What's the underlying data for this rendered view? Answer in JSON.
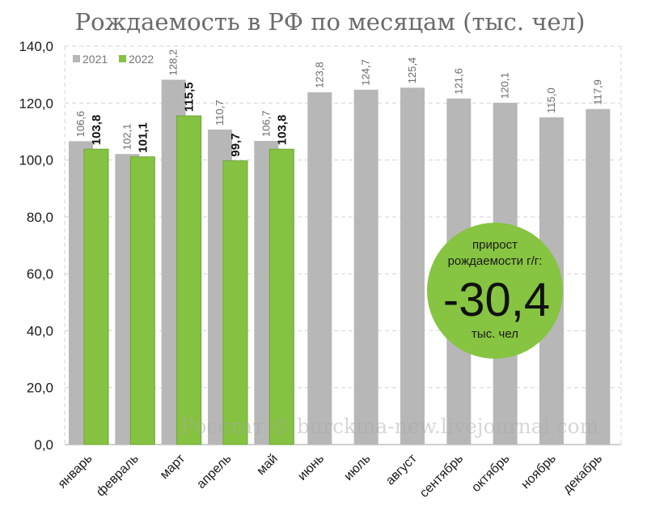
{
  "chart_data": {
    "type": "bar",
    "title": "Рождаемость в РФ по месяцам (тыс. чел)",
    "xlabel": "",
    "ylabel": "",
    "ylim": [
      0,
      140
    ],
    "yticks": [
      "0,0",
      "20,0",
      "40,0",
      "60,0",
      "80,0",
      "100,0",
      "120,0",
      "140,0"
    ],
    "grid": true,
    "legend_position": "top-left",
    "categories": [
      "январь",
      "февраль",
      "март",
      "апрель",
      "май",
      "июнь",
      "июль",
      "август",
      "сентябрь",
      "октябрь",
      "ноябрь",
      "декабрь"
    ],
    "series": [
      {
        "name": "2021",
        "color": "#b7b7b7",
        "values": [
          106.6,
          102.1,
          128.2,
          110.7,
          106.7,
          123.8,
          124.7,
          125.4,
          121.6,
          120.1,
          115.0,
          117.9
        ],
        "labels": [
          "106,6",
          "102,1",
          "128,2",
          "110,7",
          "106,7",
          "123,8",
          "124,7",
          "125,4",
          "121,6",
          "120,1",
          "115,0",
          "117,9"
        ]
      },
      {
        "name": "2022",
        "color": "#85c241",
        "values": [
          103.8,
          101.1,
          115.5,
          99.7,
          103.8,
          null,
          null,
          null,
          null,
          null,
          null,
          null
        ],
        "labels": [
          "103,8",
          "101,1",
          "115,5",
          "99,7",
          "103,8",
          "",
          "",
          "",
          "",
          "",
          "",
          ""
        ]
      }
    ],
    "annotation": {
      "line1": "прирост",
      "line2": "рождаемости г/г:",
      "value": "-30,4",
      "unit": "тыс. чел",
      "color": "#86c441"
    },
    "watermark": "Росстат © burckina-new.livejournal.com"
  }
}
